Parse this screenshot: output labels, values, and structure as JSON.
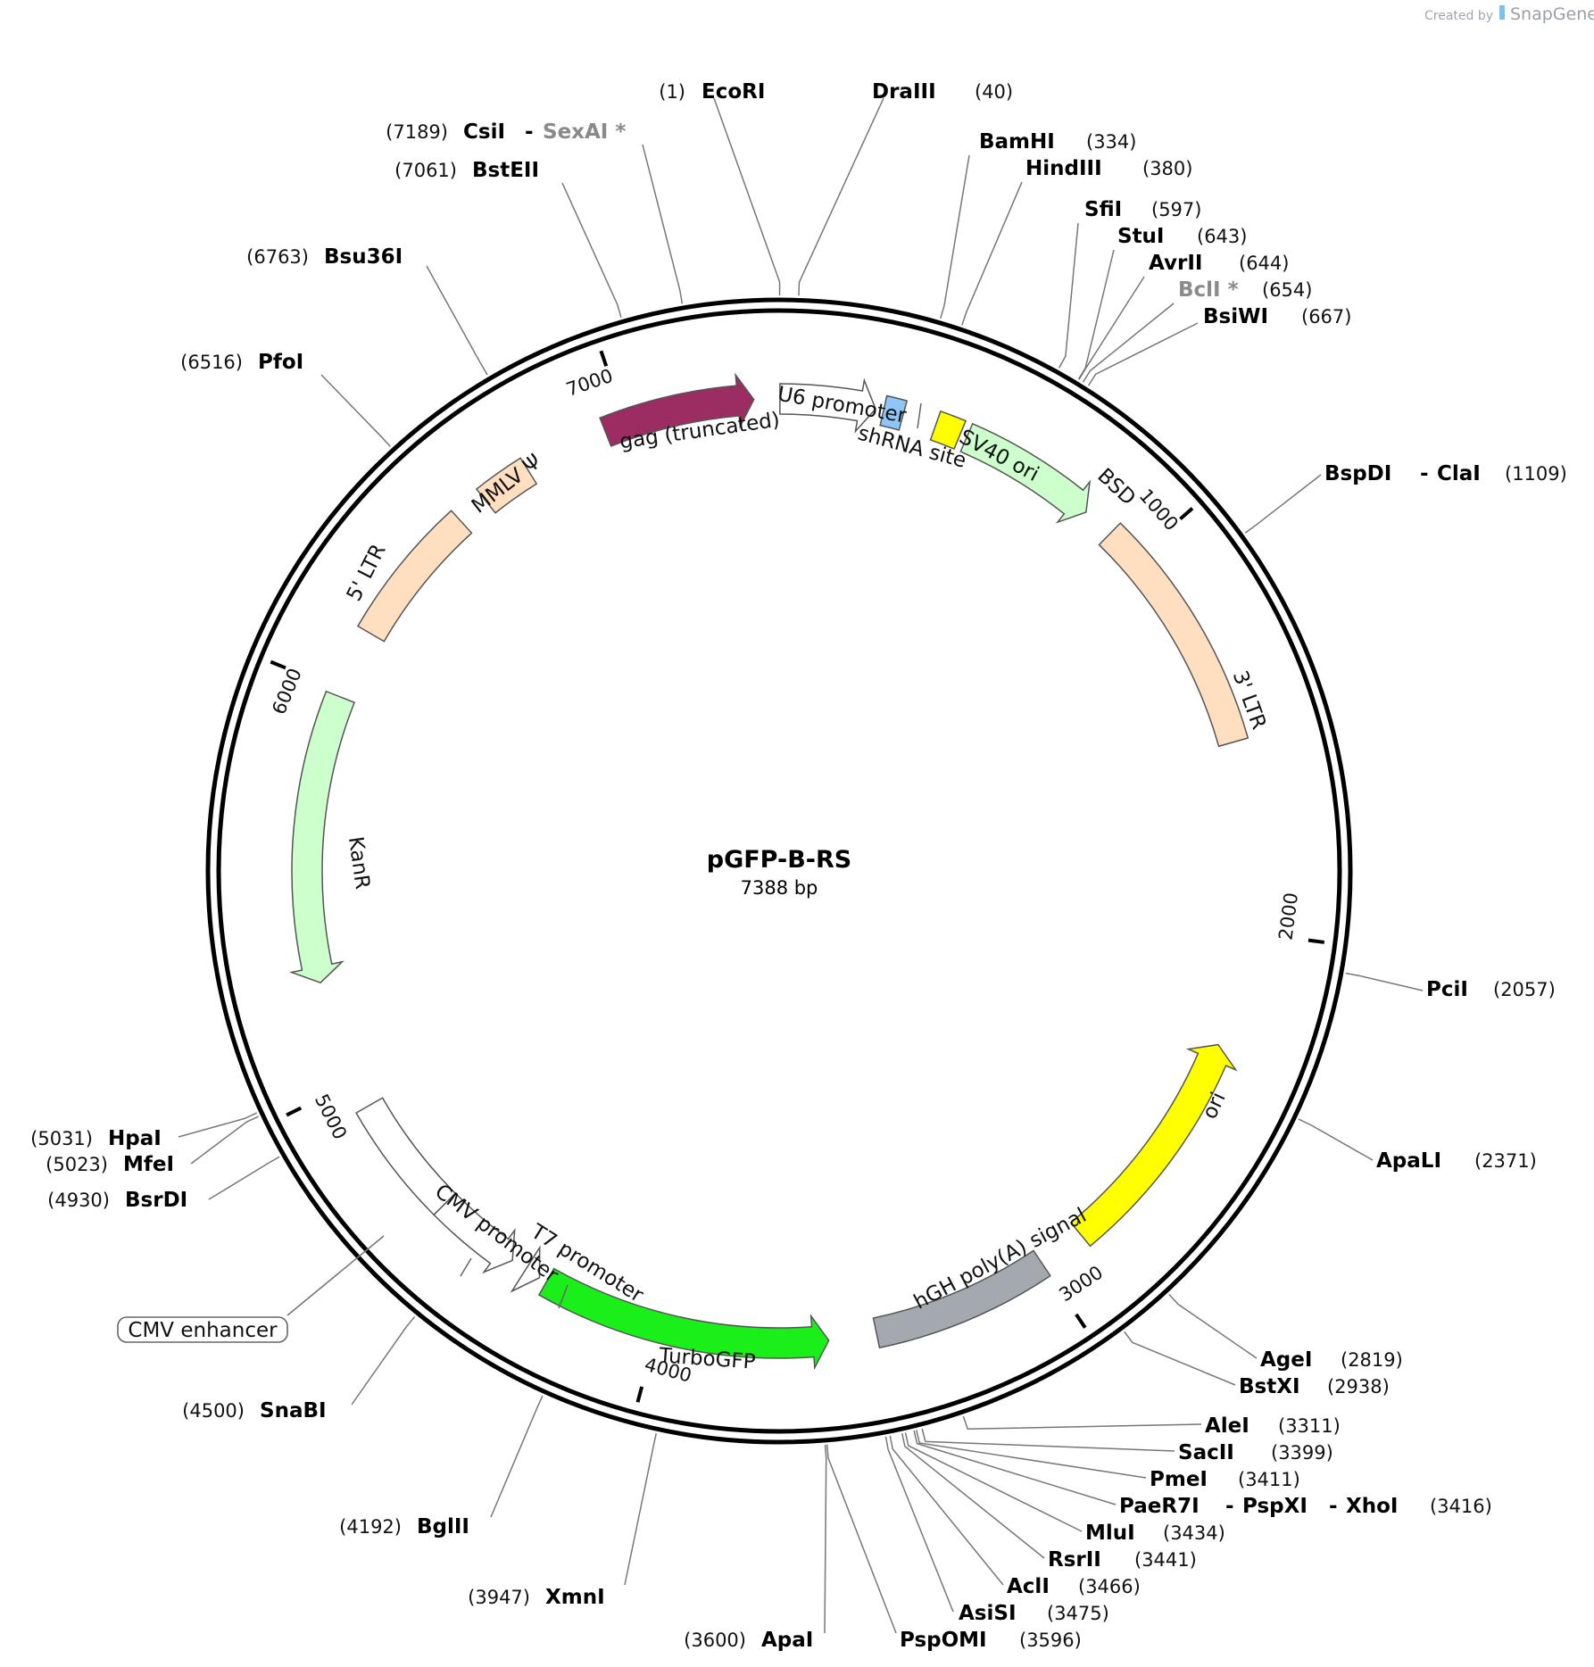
{
  "credit": {
    "prefix": "Created by",
    "brand": "SnapGene"
  },
  "plasmid": {
    "name": "pGFP-B-RS",
    "length_label": "7388 bp",
    "length": 7388
  },
  "ticks": [
    {
      "pos": 1000,
      "label": "1000"
    },
    {
      "pos": 2000,
      "label": "2000"
    },
    {
      "pos": 3000,
      "label": "3000"
    },
    {
      "pos": 4000,
      "label": "4000"
    },
    {
      "pos": 5000,
      "label": "5000"
    },
    {
      "pos": 6000,
      "label": "6000"
    },
    {
      "pos": 7000,
      "label": "7000"
    }
  ],
  "features": [
    {
      "name": "gag (truncated)",
      "start": 6945,
      "end": 7325,
      "color": "#9b2d62",
      "dir": 1
    },
    {
      "name": "U6 promoter",
      "start": 7390,
      "end": 7630,
      "color": "#ffffff",
      "dir": 1
    },
    {
      "name": "shRNA site",
      "start": 7650,
      "end": 7700,
      "color": "#8ec6f7",
      "dir": 0
    },
    {
      "name": "SV40 ori",
      "start": 7785,
      "end": 7850,
      "color": "#ffff00",
      "dir": 0
    },
    {
      "name": "BSD",
      "start": 7868,
      "end": 8220,
      "color": "#ccffcc",
      "dir": 1
    },
    {
      "name": "3' LTR",
      "start": 8300,
      "end": 8910,
      "color": "#ffdfc0",
      "dir": 0
    },
    {
      "name": "ori",
      "start": 2290,
      "end": 2880,
      "color": "#ffff00",
      "dir": -1
    },
    {
      "name": "hGH poly(A) signal",
      "start": 3000,
      "end": 3450,
      "color": "#a4a9b0",
      "dir": 0
    },
    {
      "name": "TurboGFP",
      "start": 3570,
      "end": 4300,
      "color": "#1aef1a",
      "dir": -1
    },
    {
      "name": "T7 promoter",
      "start": 4320,
      "end": 4360,
      "color": "#ffffff",
      "dir": -1
    },
    {
      "name": "CMV promoter",
      "start": 4400,
      "end": 4620,
      "color": "#ffffff",
      "dir": -1
    },
    {
      "name": "CMV enhancer",
      "start": 4620,
      "end": 4930,
      "color": "#ffffff",
      "dir": 0
    },
    {
      "name": "KanR",
      "start": 5260,
      "end": 5985,
      "color": "#ccffcc",
      "dir": -1
    },
    {
      "name": "5' LTR",
      "start": 6160,
      "end": 6520,
      "color": "#ffdfc0",
      "dir": 0
    },
    {
      "name": "MMLV Ψ",
      "start": 6600,
      "end": 6730,
      "color": "#ffdfc0",
      "dir": 0
    }
  ],
  "enzymes": [
    {
      "pos": "(1)",
      "name": "EcoRI",
      "name2": "",
      "name3": "",
      "gray": false
    },
    {
      "pos": "(40)",
      "name": "DraIII",
      "name2": "",
      "name3": "",
      "gray": false
    },
    {
      "pos": "(334)",
      "name": "BamHI",
      "name2": "",
      "name3": "",
      "gray": false
    },
    {
      "pos": "(380)",
      "name": "HindIII",
      "name2": "",
      "name3": "",
      "gray": false
    },
    {
      "pos": "(597)",
      "name": "SfiI",
      "name2": "",
      "name3": "",
      "gray": false
    },
    {
      "pos": "(643)",
      "name": "StuI",
      "name2": "",
      "name3": "",
      "gray": false
    },
    {
      "pos": "(644)",
      "name": "AvrII",
      "name2": "",
      "name3": "",
      "gray": false
    },
    {
      "pos": "(654)",
      "name": "BclI *",
      "name2": "",
      "name3": "",
      "gray": true
    },
    {
      "pos": "(667)",
      "name": "BsiWI",
      "name2": "",
      "name3": "",
      "gray": false
    },
    {
      "pos": "(1109)",
      "name": "BspDI",
      "name2": "ClaI",
      "name3": "",
      "gray": false
    },
    {
      "pos": "(2057)",
      "name": "PciI",
      "name2": "",
      "name3": "",
      "gray": false
    },
    {
      "pos": "(2371)",
      "name": "ApaLI",
      "name2": "",
      "name3": "",
      "gray": false
    },
    {
      "pos": "(2819)",
      "name": "AgeI",
      "name2": "",
      "name3": "",
      "gray": false
    },
    {
      "pos": "(2938)",
      "name": "BstXI",
      "name2": "",
      "name3": "",
      "gray": false
    },
    {
      "pos": "(3311)",
      "name": "AleI",
      "name2": "",
      "name3": "",
      "gray": false
    },
    {
      "pos": "(3399)",
      "name": "SacII",
      "name2": "",
      "name3": "",
      "gray": false
    },
    {
      "pos": "(3411)",
      "name": "PmeI",
      "name2": "",
      "name3": "",
      "gray": false
    },
    {
      "pos": "(3416)",
      "name": "PaeR7I",
      "name2": "PspXI",
      "name3": "XhoI",
      "gray": false
    },
    {
      "pos": "(3434)",
      "name": "MluI",
      "name2": "",
      "name3": "",
      "gray": false
    },
    {
      "pos": "(3441)",
      "name": "RsrII",
      "name2": "",
      "name3": "",
      "gray": false
    },
    {
      "pos": "(3466)",
      "name": "AclI",
      "name2": "",
      "name3": "",
      "gray": false
    },
    {
      "pos": "(3475)",
      "name": "AsiSI",
      "name2": "",
      "name3": "",
      "gray": false
    },
    {
      "pos": "(3596)",
      "name": "PspOMI",
      "name2": "",
      "name3": "",
      "gray": false
    },
    {
      "pos": "(3600)",
      "name": "ApaI",
      "name2": "",
      "name3": "",
      "gray": false
    },
    {
      "pos": "(3947)",
      "name": "XmnI",
      "name2": "",
      "name3": "",
      "gray": false
    },
    {
      "pos": "(4192)",
      "name": "BglII",
      "name2": "",
      "name3": "",
      "gray": false
    },
    {
      "pos": "(4500)",
      "name": "SnaBI",
      "name2": "",
      "name3": "",
      "gray": false
    },
    {
      "pos": "(4930)",
      "name": "BsrDI",
      "name2": "",
      "name3": "",
      "gray": false
    },
    {
      "pos": "(5023)",
      "name": "MfeI",
      "name2": "",
      "name3": "",
      "gray": false
    },
    {
      "pos": "(5031)",
      "name": "HpaI",
      "name2": "",
      "name3": "",
      "gray": false
    },
    {
      "pos": "(6516)",
      "name": "PfoI",
      "name2": "",
      "name3": "",
      "gray": false
    },
    {
      "pos": "(6763)",
      "name": "Bsu36I",
      "name2": "",
      "name3": "",
      "gray": false
    },
    {
      "pos": "(7061)",
      "name": "BstEII",
      "name2": "",
      "name3": "",
      "gray": false
    },
    {
      "pos": "(7189)",
      "name": "CsiI",
      "name2": "SexAI *",
      "name3": "",
      "gray": false
    }
  ]
}
